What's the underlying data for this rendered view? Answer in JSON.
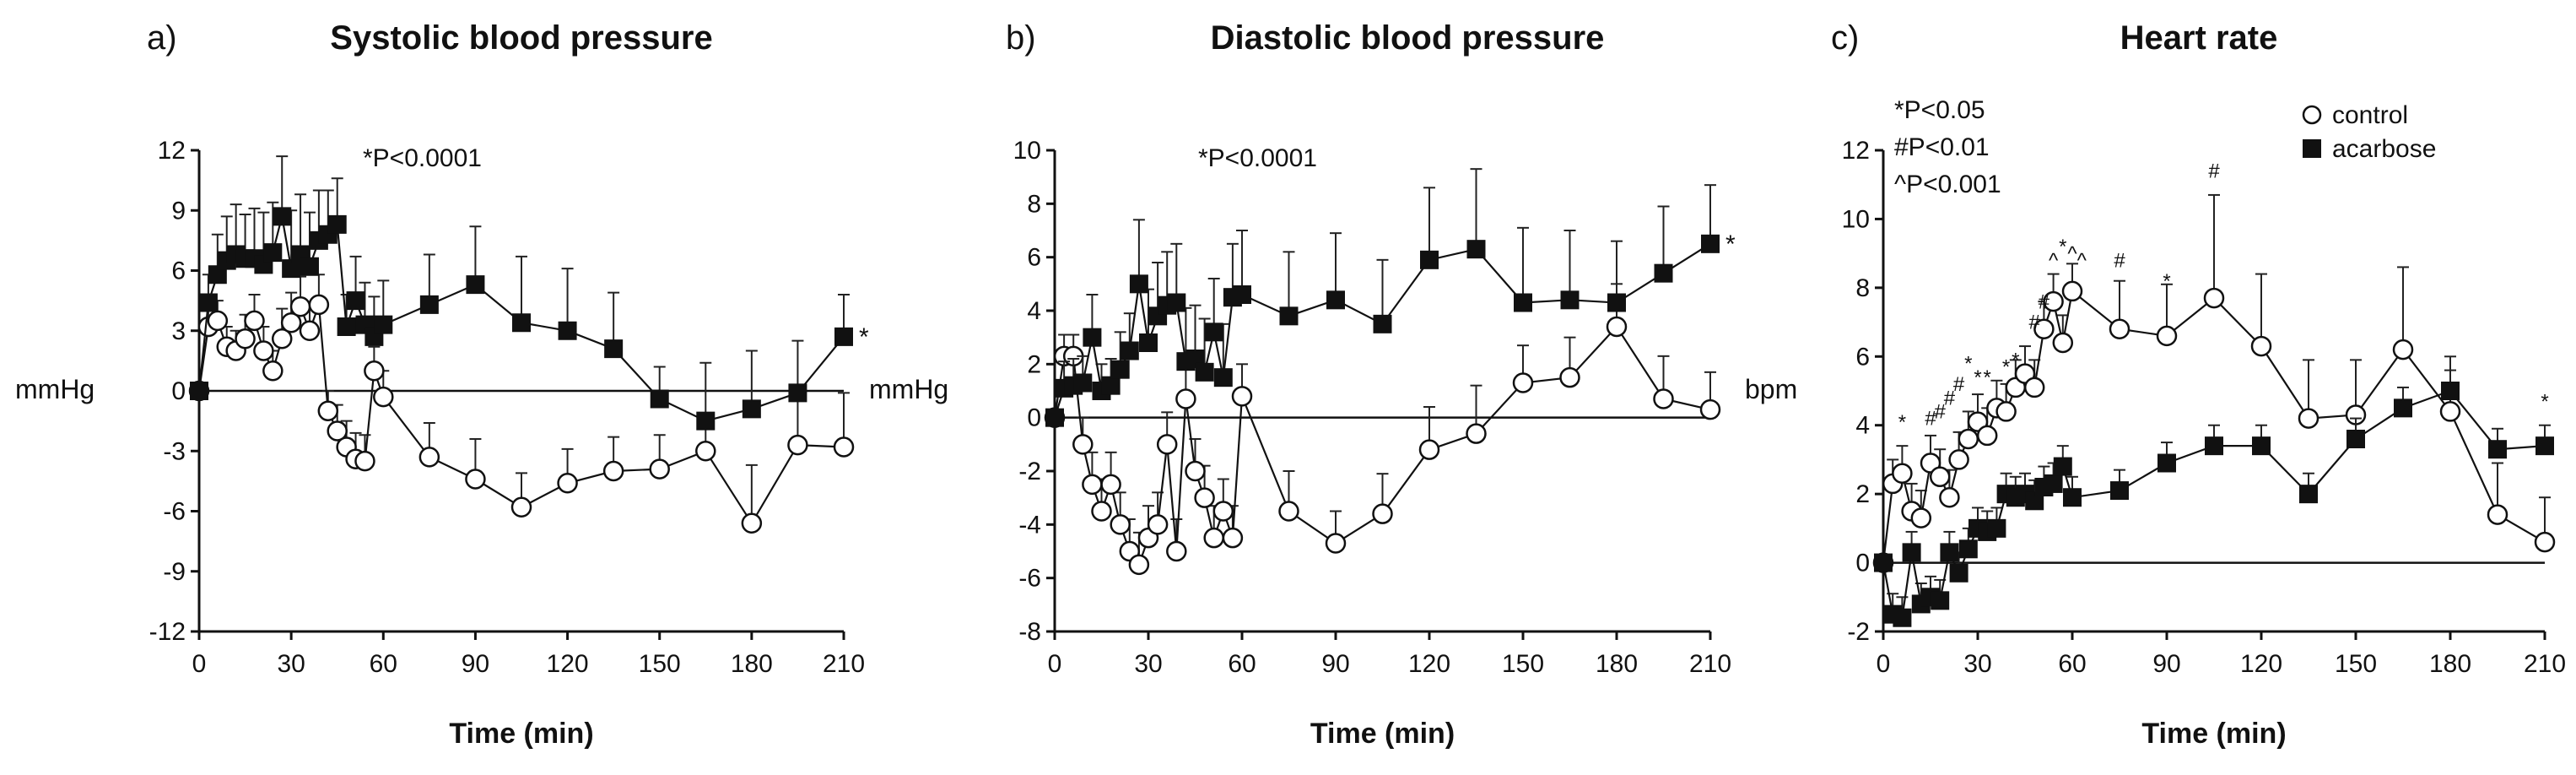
{
  "chart_data": [
    {
      "type": "line",
      "panel_label": "a)",
      "title": "Systolic blood pressure",
      "xlabel": "Time (min)",
      "ylabel": "mmHg",
      "xlim": [
        0,
        210
      ],
      "ylim": [
        -12,
        12
      ],
      "xticks": [
        0,
        30,
        60,
        90,
        120,
        150,
        180,
        210
      ],
      "yticks": [
        -12,
        -9,
        -6,
        -3,
        0,
        3,
        6,
        9,
        12
      ],
      "annotations": [
        "*P<0.0001"
      ],
      "series": [
        {
          "marker": "open-circle",
          "points": [
            [
              0,
              0
            ],
            [
              3,
              3.2
            ],
            [
              6,
              3.5
            ],
            [
              9,
              2.2
            ],
            [
              12,
              2
            ],
            [
              15,
              2.6
            ],
            [
              18,
              3.5
            ],
            [
              21,
              2
            ],
            [
              24,
              1
            ],
            [
              27,
              2.6
            ],
            [
              30,
              3.4
            ],
            [
              33,
              4.2
            ],
            [
              36,
              3
            ],
            [
              39,
              4.3
            ],
            [
              42,
              -1
            ],
            [
              45,
              -2
            ],
            [
              48,
              -2.8
            ],
            [
              51,
              -3.4
            ],
            [
              54,
              -3.5
            ],
            [
              57,
              1
            ],
            [
              60,
              -0.3
            ],
            [
              75,
              -3.3
            ],
            [
              90,
              -4.4
            ],
            [
              105,
              -5.8
            ],
            [
              120,
              -4.6
            ],
            [
              135,
              -4
            ],
            [
              150,
              -3.9
            ],
            [
              165,
              -3
            ],
            [
              180,
              -6.6
            ],
            [
              195,
              -2.7
            ],
            [
              210,
              -2.8
            ]
          ],
          "error_up": [
            0,
            1,
            1,
            1,
            1,
            1.2,
            1.3,
            1.2,
            1,
            1.5,
            1.5,
            1.5,
            1.4,
            1.5,
            1,
            1.3,
            1.3,
            1.3,
            1.3,
            1.2,
            1.3,
            1.7,
            2,
            1.7,
            1.7,
            1.7,
            1.7,
            1.7,
            2.9,
            2.5,
            2.7
          ]
        },
        {
          "marker": "filled-square",
          "points": [
            [
              0,
              0
            ],
            [
              3,
              4.4
            ],
            [
              6,
              5.8
            ],
            [
              9,
              6.5
            ],
            [
              12,
              6.8
            ],
            [
              15,
              6.6
            ],
            [
              18,
              6.6
            ],
            [
              21,
              6.3
            ],
            [
              24,
              6.9
            ],
            [
              27,
              8.7
            ],
            [
              30,
              6.1
            ],
            [
              33,
              6.8
            ],
            [
              36,
              6.2
            ],
            [
              39,
              7.5
            ],
            [
              42,
              7.8
            ],
            [
              45,
              8.3
            ],
            [
              48,
              3.2
            ],
            [
              51,
              4.5
            ],
            [
              54,
              3.3
            ],
            [
              57,
              2.7
            ],
            [
              60,
              3.3
            ],
            [
              75,
              4.3
            ],
            [
              90,
              5.3
            ],
            [
              105,
              3.4
            ],
            [
              120,
              3
            ],
            [
              135,
              2.1
            ],
            [
              150,
              -0.4
            ],
            [
              165,
              -1.5
            ],
            [
              180,
              -0.9
            ],
            [
              195,
              -0.1
            ],
            [
              210,
              2.7
            ]
          ],
          "error_up": [
            0,
            1.4,
            2,
            2.2,
            2.5,
            2.2,
            2.5,
            2.6,
            2.5,
            3,
            2.9,
            3,
            2.7,
            2.5,
            2.2,
            2.3,
            1.6,
            2.2,
            2.1,
            2,
            2.2,
            2.5,
            2.9,
            3.3,
            3.1,
            2.8,
            1.6,
            2.9,
            2.9,
            2.6,
            2.1
          ]
        }
      ],
      "end_markers": [
        "*"
      ]
    },
    {
      "type": "line",
      "panel_label": "b)",
      "title": "Diastolic blood pressure",
      "xlabel": "Time (min)",
      "ylabel": "mmHg",
      "xlim": [
        0,
        210
      ],
      "ylim": [
        -8,
        10
      ],
      "xticks": [
        0,
        30,
        60,
        90,
        120,
        150,
        180,
        210
      ],
      "yticks": [
        -8,
        -6,
        -4,
        -2,
        0,
        2,
        4,
        6,
        8,
        10
      ],
      "annotations": [
        "*P<0.0001"
      ],
      "series": [
        {
          "marker": "open-circle",
          "points": [
            [
              0,
              0
            ],
            [
              3,
              2.3
            ],
            [
              6,
              2.3
            ],
            [
              9,
              -1
            ],
            [
              12,
              -2.5
            ],
            [
              15,
              -3.5
            ],
            [
              18,
              -2.5
            ],
            [
              21,
              -4
            ],
            [
              24,
              -5
            ],
            [
              27,
              -5.5
            ],
            [
              30,
              -4.5
            ],
            [
              33,
              -4
            ],
            [
              36,
              -1
            ],
            [
              39,
              -5
            ],
            [
              42,
              0.7
            ],
            [
              45,
              -2
            ],
            [
              48,
              -3
            ],
            [
              51,
              -4.5
            ],
            [
              54,
              -3.5
            ],
            [
              57,
              -4.5
            ],
            [
              60,
              0.8
            ],
            [
              75,
              -3.5
            ],
            [
              90,
              -4.7
            ],
            [
              105,
              -3.6
            ],
            [
              120,
              -1.2
            ],
            [
              135,
              -0.6
            ],
            [
              150,
              1.3
            ],
            [
              165,
              1.5
            ],
            [
              180,
              3.4
            ],
            [
              195,
              0.7
            ],
            [
              210,
              0.3
            ]
          ],
          "error_up": [
            0,
            0.8,
            0.8,
            1,
            1.2,
            1.2,
            1.2,
            1.2,
            1.2,
            1.2,
            1.2,
            1.2,
            1.2,
            1.2,
            1.2,
            1.2,
            1.2,
            1.2,
            1.2,
            1.2,
            1.2,
            1.5,
            1.2,
            1.5,
            1.6,
            1.8,
            1.4,
            1.5,
            1.6,
            1.6,
            1.4
          ]
        },
        {
          "marker": "filled-square",
          "points": [
            [
              0,
              0
            ],
            [
              3,
              1.1
            ],
            [
              6,
              1.2
            ],
            [
              9,
              1.3
            ],
            [
              12,
              3
            ],
            [
              15,
              1
            ],
            [
              18,
              1.2
            ],
            [
              21,
              1.8
            ],
            [
              24,
              2.5
            ],
            [
              27,
              5
            ],
            [
              30,
              2.8
            ],
            [
              33,
              3.8
            ],
            [
              36,
              4.2
            ],
            [
              39,
              4.3
            ],
            [
              42,
              2.1
            ],
            [
              45,
              2.2
            ],
            [
              48,
              1.7
            ],
            [
              51,
              3.2
            ],
            [
              54,
              1.5
            ],
            [
              57,
              4.5
            ],
            [
              60,
              4.6
            ],
            [
              75,
              3.8
            ],
            [
              90,
              4.4
            ],
            [
              105,
              3.5
            ],
            [
              120,
              5.9
            ],
            [
              135,
              6.3
            ],
            [
              150,
              4.3
            ],
            [
              165,
              4.4
            ],
            [
              180,
              4.3
            ],
            [
              195,
              5.4
            ],
            [
              210,
              6.5
            ]
          ],
          "error_up": [
            0,
            1,
            1,
            1,
            1.6,
            1,
            1,
            1.4,
            1.4,
            2.4,
            2,
            2,
            2,
            2.2,
            2,
            2,
            2,
            2,
            2,
            2,
            2.4,
            2.4,
            2.5,
            2.4,
            2.7,
            3,
            2.8,
            2.6,
            2.3,
            2.5,
            2.2
          ]
        }
      ],
      "end_markers": [
        "*"
      ]
    },
    {
      "type": "line",
      "panel_label": "c)",
      "title": "Heart rate",
      "xlabel": "Time (min)",
      "ylabel": "bpm",
      "xlim": [
        0,
        210
      ],
      "ylim": [
        -2,
        12
      ],
      "xticks": [
        0,
        30,
        60,
        90,
        120,
        150,
        180,
        210
      ],
      "yticks": [
        -2,
        0,
        2,
        4,
        6,
        8,
        10,
        12
      ],
      "annotations": [
        "*P<0.05",
        "#P<0.01",
        "^P<0.001"
      ],
      "legend": [
        "control",
        "acarbose"
      ],
      "legend_position": "top-right",
      "series": [
        {
          "name": "control",
          "marker": "open-circle",
          "points": [
            [
              0,
              0
            ],
            [
              3,
              2.3
            ],
            [
              6,
              2.6
            ],
            [
              9,
              1.5
            ],
            [
              12,
              1.3
            ],
            [
              15,
              2.9
            ],
            [
              18,
              2.5
            ],
            [
              21,
              1.9
            ],
            [
              24,
              3
            ],
            [
              27,
              3.6
            ],
            [
              30,
              4.1
            ],
            [
              33,
              3.7
            ],
            [
              36,
              4.5
            ],
            [
              39,
              4.4
            ],
            [
              42,
              5.1
            ],
            [
              45,
              5.5
            ],
            [
              48,
              5.1
            ],
            [
              51,
              6.8
            ],
            [
              54,
              7.6
            ],
            [
              57,
              6.4
            ],
            [
              60,
              7.9
            ],
            [
              75,
              6.8
            ],
            [
              90,
              6.6
            ],
            [
              105,
              7.7
            ],
            [
              120,
              6.3
            ],
            [
              135,
              4.2
            ],
            [
              150,
              4.3
            ],
            [
              165,
              6.2
            ],
            [
              180,
              4.4
            ],
            [
              195,
              1.4
            ],
            [
              210,
              0.6
            ]
          ],
          "error_up": [
            0,
            0.7,
            0.8,
            0.8,
            0.8,
            0.8,
            0.8,
            0.8,
            0.8,
            0.8,
            0.8,
            0.8,
            0.8,
            0.8,
            0.8,
            0.8,
            0.8,
            0.8,
            0.8,
            0.8,
            0.8,
            1.4,
            1.5,
            3,
            2.1,
            1.7,
            1.6,
            2.4,
            1.6,
            1.5,
            1.3
          ]
        },
        {
          "name": "acarbose",
          "marker": "filled-square",
          "points": [
            [
              0,
              0
            ],
            [
              3,
              -1.5
            ],
            [
              6,
              -1.6
            ],
            [
              9,
              0.3
            ],
            [
              12,
              -1.2
            ],
            [
              15,
              -1
            ],
            [
              18,
              -1.1
            ],
            [
              21,
              0.3
            ],
            [
              24,
              -0.3
            ],
            [
              27,
              0.4
            ],
            [
              30,
              1
            ],
            [
              33,
              0.9
            ],
            [
              36,
              1
            ],
            [
              39,
              2
            ],
            [
              42,
              1.9
            ],
            [
              45,
              2
            ],
            [
              48,
              1.8
            ],
            [
              51,
              2.2
            ],
            [
              54,
              2.3
            ],
            [
              57,
              2.8
            ],
            [
              60,
              1.9
            ],
            [
              75,
              2.1
            ],
            [
              90,
              2.9
            ],
            [
              105,
              3.4
            ],
            [
              120,
              3.4
            ],
            [
              135,
              2
            ],
            [
              150,
              3.6
            ],
            [
              165,
              4.5
            ],
            [
              180,
              5
            ],
            [
              195,
              3.3
            ],
            [
              210,
              3.4
            ]
          ],
          "error_up": [
            0,
            0.6,
            0.6,
            0.6,
            0.6,
            0.6,
            0.6,
            0.6,
            0.6,
            0.6,
            0.6,
            0.6,
            0.6,
            0.6,
            0.6,
            0.6,
            0.6,
            0.6,
            0.6,
            0.6,
            0.6,
            0.6,
            0.6,
            0.6,
            0.6,
            0.6,
            0.6,
            0.6,
            0.6,
            0.6,
            0.6
          ]
        }
      ],
      "sig_markers": [
        {
          "x": 6,
          "y": 3.9,
          "s": "*"
        },
        {
          "x": 15,
          "y": 4.0,
          "s": "#"
        },
        {
          "x": 18,
          "y": 4.2,
          "s": "#"
        },
        {
          "x": 21,
          "y": 4.6,
          "s": "#"
        },
        {
          "x": 24,
          "y": 5.0,
          "s": "#"
        },
        {
          "x": 27,
          "y": 5.6,
          "s": "*"
        },
        {
          "x": 30,
          "y": 5.2,
          "s": "*"
        },
        {
          "x": 33,
          "y": 5.2,
          "s": "*"
        },
        {
          "x": 39,
          "y": 5.5,
          "s": "*"
        },
        {
          "x": 42,
          "y": 5.7,
          "s": "*"
        },
        {
          "x": 48,
          "y": 6.8,
          "s": "#"
        },
        {
          "x": 51,
          "y": 7.4,
          "s": "#"
        },
        {
          "x": 54,
          "y": 8.6,
          "s": "^"
        },
        {
          "x": 57,
          "y": 9.0,
          "s": "*"
        },
        {
          "x": 60,
          "y": 8.8,
          "s": "^"
        },
        {
          "x": 63,
          "y": 8.6,
          "s": "^"
        },
        {
          "x": 75,
          "y": 8.6,
          "s": "#"
        },
        {
          "x": 90,
          "y": 8.0,
          "s": "*"
        },
        {
          "x": 105,
          "y": 11.2,
          "s": "#"
        },
        {
          "x": 210,
          "y": 4.5,
          "s": "*"
        }
      ]
    }
  ]
}
